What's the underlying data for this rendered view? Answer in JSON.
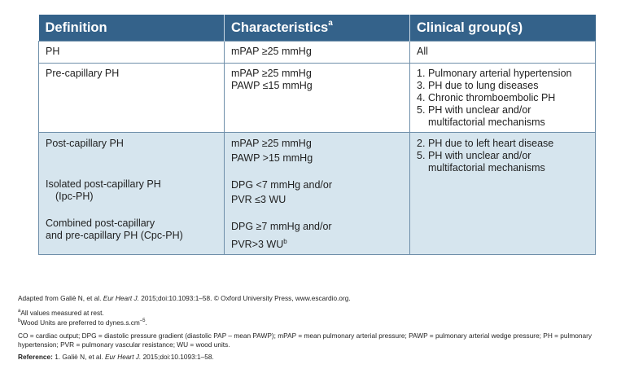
{
  "table": {
    "headers": [
      "Definition",
      "Characteristics",
      "Clinical group(s)"
    ],
    "header_superscript": "a",
    "rows": [
      {
        "definition": [
          "PH"
        ],
        "characteristics": [
          "mPAP ≥25 mmHg"
        ],
        "groups": [
          {
            "num": "",
            "text": [
              "All"
            ]
          }
        ]
      },
      {
        "definition": [
          "Pre-capillary PH"
        ],
        "characteristics": [
          "mPAP ≥25 mmHg",
          "PAWP ≤15 mmHg"
        ],
        "groups": [
          {
            "num": "1.",
            "text": [
              "Pulmonary arterial hypertension"
            ]
          },
          {
            "num": "3.",
            "text": [
              "PH due to lung diseases"
            ]
          },
          {
            "num": "4.",
            "text": [
              "Chronic thromboembolic PH"
            ]
          },
          {
            "num": "5.",
            "text": [
              "PH with unclear and/or",
              "multifactorial mechanisms"
            ]
          }
        ]
      },
      {
        "definition_main": "Post-capillary PH",
        "definition_sub1": [
          "Isolated post-capillary PH",
          "(Ipc-PH)"
        ],
        "definition_sub2": [
          "Combined post-capillary",
          "and pre-capillary PH (Cpc-PH)"
        ],
        "characteristics_main": [
          "mPAP ≥25 mmHg",
          "PAWP >15 mmHg"
        ],
        "characteristics_sub1": [
          "DPG <7 mmHg and/or",
          "PVR ≤3 WU"
        ],
        "characteristics_sub2": [
          "DPG ≥7 mmHg and/or",
          "PVR>3 WU"
        ],
        "characteristics_sub2_sup": "b",
        "groups": [
          {
            "num": "2.",
            "text": [
              "PH due to left heart disease"
            ]
          },
          {
            "num": "5.",
            "text": [
              "PH with unclear and/or",
              "multifactorial mechanisms"
            ]
          }
        ]
      }
    ]
  },
  "notes": {
    "adapted_pre": "Adapted from Galiè N, et al. ",
    "adapted_journal": "Eur Heart J.",
    "adapted_post": " 2015;doi:10.1093:1–58. © Oxford University Press, www.escardio.org.",
    "footnote_a_sup": "a",
    "footnote_a": "All values measured at rest.",
    "footnote_b_sup": "b",
    "footnote_b": "Wood Units are preferred to dynes.s.cm",
    "footnote_b_exp": "–5",
    "footnote_b_end": ".",
    "abbreviations": "CO = cardiac output; DPG = diastolic pressure gradient (diastolic PAP – mean PAWP); mPAP = mean pulmonary arterial pressure; PAWP = pulmonary arterial wedge pressure; PH = pulmonary hypertension; PVR = pulmonary vascular resistance; WU = wood units.",
    "reference_label": "Reference: ",
    "reference_pre": "1. Galiè N, et al. ",
    "reference_journal": "Eur Heart J.",
    "reference_post": " 2015;doi:10.1093:1–58."
  },
  "colors": {
    "header_bg": "#34628a",
    "row_alt_bg": "#d6e5ee",
    "border": "#6f8faa"
  }
}
